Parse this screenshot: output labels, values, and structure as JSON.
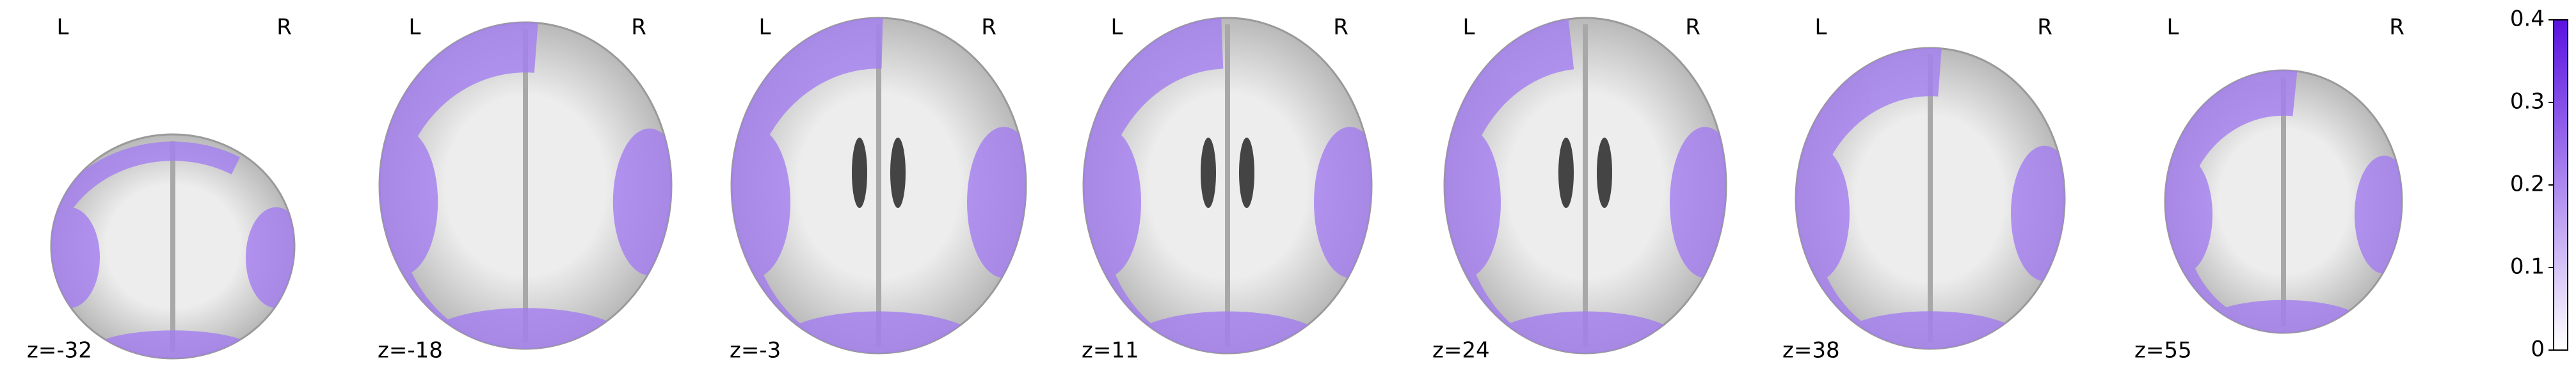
{
  "slices": [
    {
      "left": "L",
      "right": "R",
      "label": "z=-32"
    },
    {
      "left": "L",
      "right": "R",
      "label": "z=-18"
    },
    {
      "left": "L",
      "right": "R",
      "label": "z=-3"
    },
    {
      "left": "L",
      "right": "R",
      "label": "z=11"
    },
    {
      "left": "L",
      "right": "R",
      "label": "z=24"
    },
    {
      "left": "L",
      "right": "R",
      "label": "z=38"
    },
    {
      "left": "L",
      "right": "R",
      "label": "z=55"
    }
  ],
  "colorbar": {
    "lim": [
      0,
      0.4
    ],
    "ticks": [
      0,
      0.1,
      0.2,
      0.3,
      0.4
    ],
    "color": "#5a12e0"
  }
}
